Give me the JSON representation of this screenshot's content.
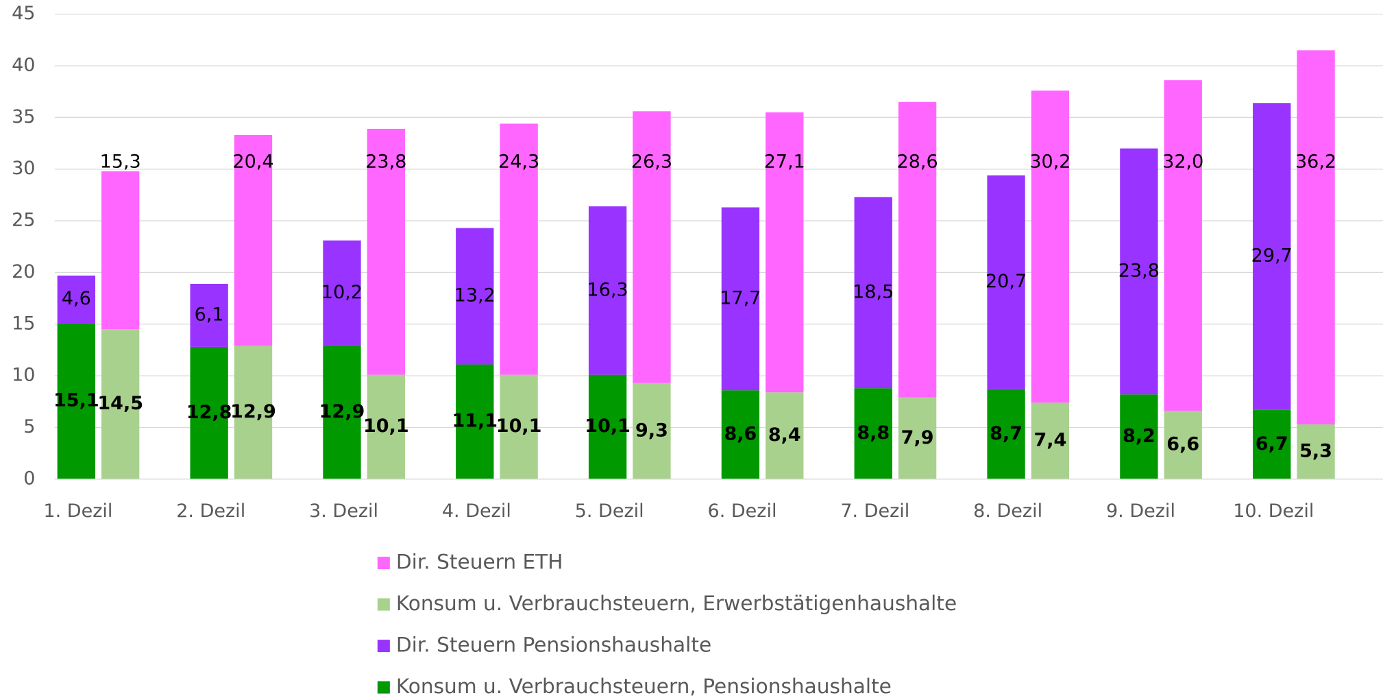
{
  "chart_data": {
    "type": "bar",
    "categories": [
      "1. Dezil",
      "2. Dezil",
      "3. Dezil",
      "4. Dezil",
      "5. Dezil",
      "6. Dezil",
      "7. Dezil",
      "8. Dezil",
      "9. Dezil",
      "10. Dezil"
    ],
    "series": [
      {
        "name": "Dir. Steuern ETH",
        "color": "#ff66ff",
        "values": [
          15.3,
          20.4,
          23.8,
          24.3,
          26.3,
          27.1,
          28.6,
          30.2,
          32.0,
          36.2
        ],
        "value_labels": [
          "15,3",
          "20,4",
          "23,8",
          "24,3",
          "26,3",
          "27,1",
          "28,6",
          "30,2",
          "32,0",
          "36,2"
        ]
      },
      {
        "name": "Konsum u. Verbrauchsteuern, Erwerbstätigenhaushalte",
        "color": "#a9d18e",
        "values": [
          14.5,
          12.9,
          10.1,
          10.1,
          9.3,
          8.4,
          7.9,
          7.4,
          6.6,
          5.3
        ],
        "value_labels": [
          "14,5",
          "12,9",
          "10,1",
          "10,1",
          "9,3",
          "8,4",
          "7,9",
          "7,4",
          "6,6",
          "5,3"
        ]
      },
      {
        "name": "Dir. Steuern Pensionshaushalte",
        "color": "#9933ff",
        "values": [
          4.6,
          6.1,
          10.2,
          13.2,
          16.3,
          17.7,
          18.5,
          20.7,
          23.8,
          29.7
        ],
        "value_labels": [
          "4,6",
          "6,1",
          "10,2",
          "13,2",
          "16,3",
          "17,7",
          "18,5",
          "20,7",
          "23,8",
          "29,7"
        ]
      },
      {
        "name": "Konsum u. Verbrauchsteuern, Pensionshaushalte",
        "color": "#009900",
        "values": [
          15.1,
          12.8,
          12.9,
          11.1,
          10.1,
          8.6,
          8.8,
          8.7,
          8.2,
          6.7
        ],
        "value_labels": [
          "15,1",
          "12,8",
          "12,9",
          "11,1",
          "10,1",
          "8,6",
          "8,8",
          "8,7",
          "8,2",
          "6,7"
        ]
      }
    ],
    "ylim": [
      0,
      45
    ],
    "yticks": [
      0,
      5,
      10,
      15,
      20,
      25,
      30,
      35,
      40,
      45
    ],
    "grid": true
  }
}
